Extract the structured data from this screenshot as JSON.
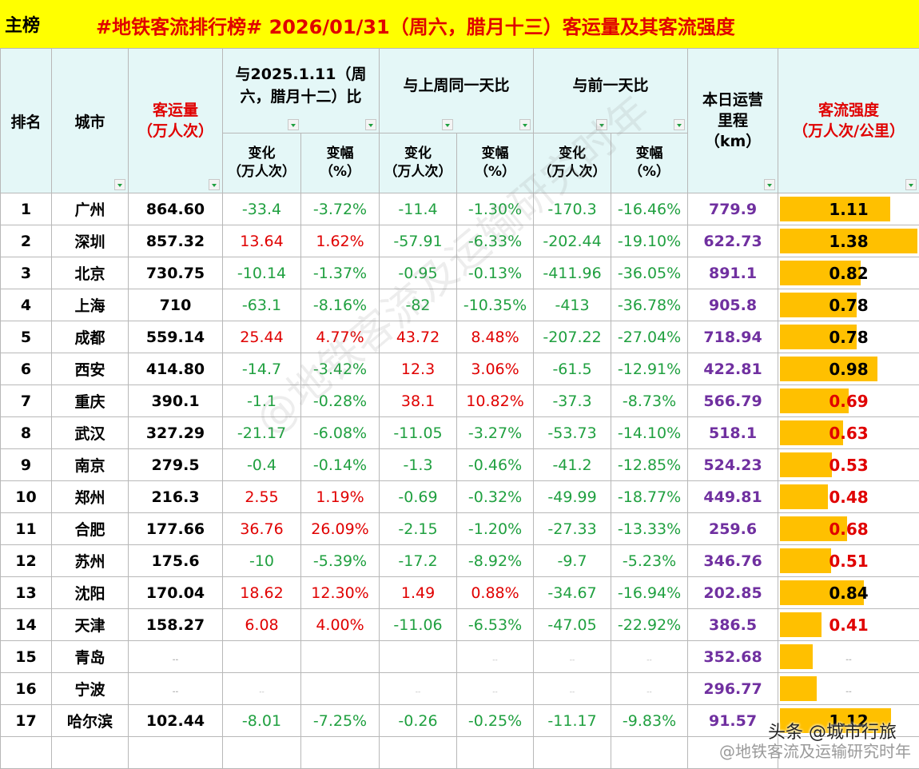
{
  "board_label": "主榜",
  "title": "#地铁客流排行榜# 2026/01/31（周六，腊月十三）客运量及其客流强度",
  "headers": {
    "rank": "排名",
    "city": "城市",
    "volume_l1": "客运量",
    "volume_l2": "（万人次）",
    "cmp_ly_l1": "与2025.1.11（周",
    "cmp_ly_l2": "六，腊月十二）比",
    "cmp_lw": "与上周同一天比",
    "cmp_pd": "与前一天比",
    "km_l1": "本日运营",
    "km_l2": "里程",
    "km_l3": "（km）",
    "intensity_l1": "客流强度",
    "intensity_l2": "（万人次/公里）",
    "change_l1": "变化",
    "change_l2": "（万人次）",
    "rate_l1": "变幅",
    "rate_l2": "（%）"
  },
  "rows": [
    {
      "rank": "1",
      "city": "广州",
      "volume": "864.60",
      "ly_chg": "-33.4",
      "ly_pct": "-3.72%",
      "lw_chg": "-11.4",
      "lw_pct": "-1.30%",
      "pd_chg": "-170.3",
      "pd_pct": "-16.46%",
      "km": "779.9",
      "intensity": "1.11",
      "fill": 0.8
    },
    {
      "rank": "2",
      "city": "深圳",
      "volume": "857.32",
      "ly_chg": "13.64",
      "ly_pct": "1.62%",
      "lw_chg": "-57.91",
      "lw_pct": "-6.33%",
      "pd_chg": "-202.44",
      "pd_pct": "-19.10%",
      "km": "622.73",
      "intensity": "1.38",
      "fill": 1.0
    },
    {
      "rank": "3",
      "city": "北京",
      "volume": "730.75",
      "ly_chg": "-10.14",
      "ly_pct": "-1.37%",
      "lw_chg": "-0.95",
      "lw_pct": "-0.13%",
      "pd_chg": "-411.96",
      "pd_pct": "-36.05%",
      "km": "891.1",
      "intensity": "0.82",
      "fill": 0.59
    },
    {
      "rank": "4",
      "city": "上海",
      "volume": "710",
      "ly_chg": "-63.1",
      "ly_pct": "-8.16%",
      "lw_chg": "-82",
      "lw_pct": "-10.35%",
      "pd_chg": "-413",
      "pd_pct": "-36.78%",
      "km": "905.8",
      "intensity": "0.78",
      "fill": 0.56
    },
    {
      "rank": "5",
      "city": "成都",
      "volume": "559.14",
      "ly_chg": "25.44",
      "ly_pct": "4.77%",
      "lw_chg": "43.72",
      "lw_pct": "8.48%",
      "pd_chg": "-207.22",
      "pd_pct": "-27.04%",
      "km": "718.94",
      "intensity": "0.78",
      "fill": 0.56
    },
    {
      "rank": "6",
      "city": "西安",
      "volume": "414.80",
      "ly_chg": "-14.7",
      "ly_pct": "-3.42%",
      "lw_chg": "12.3",
      "lw_pct": "3.06%",
      "pd_chg": "-61.5",
      "pd_pct": "-12.91%",
      "km": "422.81",
      "intensity": "0.98",
      "fill": 0.71
    },
    {
      "rank": "7",
      "city": "重庆",
      "volume": "390.1",
      "ly_chg": "-1.1",
      "ly_pct": "-0.28%",
      "lw_chg": "38.1",
      "lw_pct": "10.82%",
      "pd_chg": "-37.3",
      "pd_pct": "-8.73%",
      "km": "566.79",
      "intensity": "0.69",
      "fill": 0.5
    },
    {
      "rank": "8",
      "city": "武汉",
      "volume": "327.29",
      "ly_chg": "-21.17",
      "ly_pct": "-6.08%",
      "lw_chg": "-11.05",
      "lw_pct": "-3.27%",
      "pd_chg": "-53.73",
      "pd_pct": "-14.10%",
      "km": "518.1",
      "intensity": "0.63",
      "fill": 0.46
    },
    {
      "rank": "9",
      "city": "南京",
      "volume": "279.5",
      "ly_chg": "-0.4",
      "ly_pct": "-0.14%",
      "lw_chg": "-1.3",
      "lw_pct": "-0.46%",
      "pd_chg": "-41.2",
      "pd_pct": "-12.85%",
      "km": "524.23",
      "intensity": "0.53",
      "fill": 0.38
    },
    {
      "rank": "10",
      "city": "郑州",
      "volume": "216.3",
      "ly_chg": "2.55",
      "ly_pct": "1.19%",
      "lw_chg": "-0.69",
      "lw_pct": "-0.32%",
      "pd_chg": "-49.99",
      "pd_pct": "-18.77%",
      "km": "449.81",
      "intensity": "0.48",
      "fill": 0.35
    },
    {
      "rank": "11",
      "city": "合肥",
      "volume": "177.66",
      "ly_chg": "36.76",
      "ly_pct": "26.09%",
      "lw_chg": "-2.15",
      "lw_pct": "-1.20%",
      "pd_chg": "-27.33",
      "pd_pct": "-13.33%",
      "km": "259.6",
      "intensity": "0.68",
      "fill": 0.49
    },
    {
      "rank": "12",
      "city": "苏州",
      "volume": "175.6",
      "ly_chg": "-10",
      "ly_pct": "-5.39%",
      "lw_chg": "-17.2",
      "lw_pct": "-8.92%",
      "pd_chg": "-9.7",
      "pd_pct": "-5.23%",
      "km": "346.76",
      "intensity": "0.51",
      "fill": 0.37
    },
    {
      "rank": "13",
      "city": "沈阳",
      "volume": "170.04",
      "ly_chg": "18.62",
      "ly_pct": "12.30%",
      "lw_chg": "1.49",
      "lw_pct": "0.88%",
      "pd_chg": "-34.67",
      "pd_pct": "-16.94%",
      "km": "202.85",
      "intensity": "0.84",
      "fill": 0.61
    },
    {
      "rank": "14",
      "city": "天津",
      "volume": "158.27",
      "ly_chg": "6.08",
      "ly_pct": "4.00%",
      "lw_chg": "-11.06",
      "lw_pct": "-6.53%",
      "pd_chg": "-47.05",
      "pd_pct": "-22.92%",
      "km": "386.5",
      "intensity": "0.41",
      "fill": 0.3
    },
    {
      "rank": "15",
      "city": "青岛",
      "volume": "--",
      "ly_chg": "",
      "ly_pct": "",
      "lw_chg": "",
      "lw_pct": "--",
      "pd_chg": "--",
      "pd_pct": "--",
      "km": "352.68",
      "intensity": "--",
      "fill": 0.24
    },
    {
      "rank": "16",
      "city": "宁波",
      "volume": "--",
      "ly_chg": "--",
      "ly_pct": "",
      "lw_chg": "--",
      "lw_pct": "--",
      "pd_chg": "--",
      "pd_pct": "--",
      "km": "296.77",
      "intensity": "--",
      "fill": 0.27
    },
    {
      "rank": "17",
      "city": "哈尔滨",
      "volume": "102.44",
      "ly_chg": "-8.01",
      "ly_pct": "-7.25%",
      "lw_chg": "-0.26",
      "lw_pct": "-0.25%",
      "pd_chg": "-11.17",
      "pd_pct": "-9.83%",
      "km": "91.57",
      "intensity": "1.12",
      "fill": 0.81
    },
    {
      "rank": "",
      "city": "",
      "volume": "",
      "ly_chg": "",
      "ly_pct": "",
      "lw_chg": "",
      "lw_pct": "",
      "pd_chg": "",
      "pd_pct": "",
      "km": "",
      "intensity": "",
      "fill": 0
    }
  ],
  "watermark": "@地铁客流及运输研究时年",
  "source_note": "头条 @城市行旅",
  "source_handle": "@地铁客流及运输研究时年",
  "colors": {
    "title_bg": "#ffff00",
    "title_text": "#e00000",
    "header_bg": "#e4f7f7",
    "positive": "#e00000",
    "negative": "#20a040",
    "mileage": "#7030a0",
    "intensity_bar": "#ffc000"
  }
}
